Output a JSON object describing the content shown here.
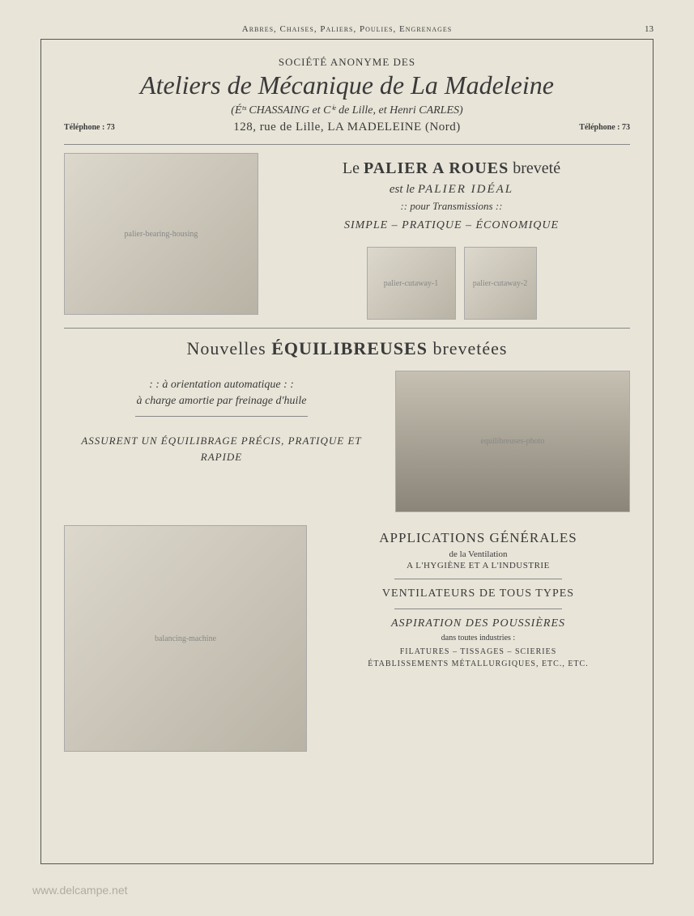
{
  "page": {
    "header_caption": "Arbres, Chaises, Paliers, Poulies, Engrenages",
    "number": "13"
  },
  "header": {
    "supertitle": "SOCIÉTÉ ANONYME DES",
    "company": "Ateliers de Mécanique de La Madeleine",
    "subline": "(Éᵗˢ CHASSAING et Cⁱᵉ de Lille, et Henri CARLES)",
    "tel_left": "Téléphone : 73",
    "address": "128, rue de Lille, LA MADELEINE (Nord)",
    "tel_right": "Téléphone : 73"
  },
  "palier": {
    "title_pre": "Le ",
    "title_bold": "PALIER A ROUES",
    "title_post": " breveté",
    "sub_pre": "est le ",
    "sub_bold": "PALIER IDÉAL",
    "for": ":: pour Transmissions ::",
    "attrs": "SIMPLE – PRATIQUE – ÉCONOMIQUE",
    "img_main": "palier-bearing-housing",
    "img_cut1": "palier-cutaway-1",
    "img_cut2": "palier-cutaway-2"
  },
  "equil": {
    "title_pre": "Nouvelles ",
    "title_bold": "ÉQUILIBREUSES",
    "title_post": " brevetées",
    "feature1": ": : à orientation automatique : :",
    "feature2": "à charge amortie par freinage d'huile",
    "assurance": "ASSURENT UN ÉQUILIBRAGE PRÉCIS, PRATIQUE ET RAPIDE",
    "img_photo": "equilibreuses-photo",
    "img_machine": "balancing-machine"
  },
  "apps": {
    "title": "APPLICATIONS GÉNÉRALES",
    "sub": "de la Ventilation",
    "line": "A L'HYGIÈNE ET A L'INDUSTRIE",
    "vent": "VENTILATEURS DE TOUS TYPES",
    "asp": "ASPIRATION DES POUSSIÈRES",
    "asp_sub": "dans toutes industries :",
    "industries1": "FILATURES – TISSAGES – SCIERIES",
    "industries2": "ÉTABLISSEMENTS MÉTALLURGIQUES, ETC., ETC."
  },
  "watermark": "www.delcampe.net"
}
